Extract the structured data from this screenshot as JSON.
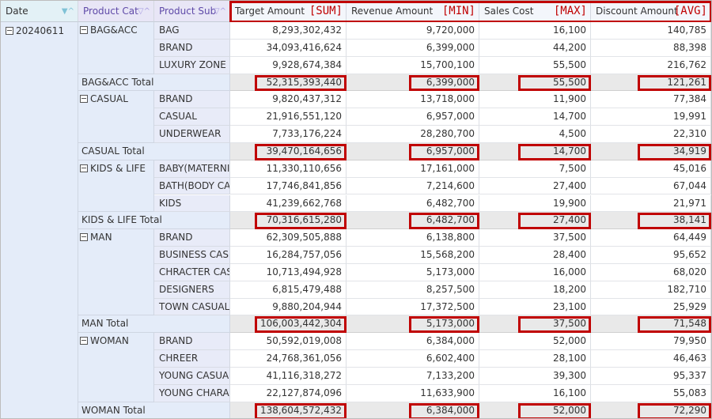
{
  "columns": {
    "date": "Date",
    "product_cat": "Product Cat",
    "product_sub": "Product Sub",
    "target_amount": "Target Amount",
    "revenue_amount": "Revenue Amount",
    "sales_cost": "Sales Cost",
    "discount_amount": "Discount Amount"
  },
  "aggregations": {
    "target_amount": "[SUM]",
    "revenue_amount": "[MIN]",
    "sales_cost": "[MAX]",
    "discount_amount": "[AVG]"
  },
  "date_value": "20240611",
  "icons": {
    "filter": "filter-icon",
    "sort": "sort-icon",
    "collapse": "collapse-icon"
  },
  "groups": [
    {
      "category": "BAG&ACC",
      "rows": [
        {
          "sub": "BAG",
          "target": "8,293,302,432",
          "revenue": "9,720,000",
          "cost": "16,100",
          "discount": "140,785"
        },
        {
          "sub": "BRAND",
          "target": "34,093,416,624",
          "revenue": "6,399,000",
          "cost": "44,200",
          "discount": "88,398"
        },
        {
          "sub": "LUXURY ZONE",
          "target": "9,928,674,384",
          "revenue": "15,700,100",
          "cost": "55,500",
          "discount": "216,762"
        }
      ],
      "total": {
        "label": "BAG&ACC Total",
        "target": "52,315,393,440",
        "revenue": "6,399,000",
        "cost": "55,500",
        "discount": "121,261"
      }
    },
    {
      "category": "CASUAL",
      "rows": [
        {
          "sub": "BRAND",
          "target": "9,820,437,312",
          "revenue": "13,718,000",
          "cost": "11,900",
          "discount": "77,384"
        },
        {
          "sub": "CASUAL",
          "target": "21,916,551,120",
          "revenue": "6,957,000",
          "cost": "14,700",
          "discount": "19,991"
        },
        {
          "sub": "UNDERWEAR",
          "target": "7,733,176,224",
          "revenue": "28,280,700",
          "cost": "4,500",
          "discount": "22,310"
        }
      ],
      "total": {
        "label": "CASUAL Total",
        "target": "39,470,164,656",
        "revenue": "6,957,000",
        "cost": "14,700",
        "discount": "34,919"
      }
    },
    {
      "category": "KIDS & LIFE",
      "rows": [
        {
          "sub": "BABY(MATERNITY",
          "target": "11,330,110,656",
          "revenue": "17,161,000",
          "cost": "7,500",
          "discount": "45,016"
        },
        {
          "sub": "BATH(BODY CAR",
          "target": "17,746,841,856",
          "revenue": "7,214,600",
          "cost": "27,400",
          "discount": "67,044"
        },
        {
          "sub": "KIDS",
          "target": "41,239,662,768",
          "revenue": "6,482,700",
          "cost": "19,900",
          "discount": "21,971"
        }
      ],
      "total": {
        "label": "KIDS & LIFE Total",
        "target": "70,316,615,280",
        "revenue": "6,482,700",
        "cost": "27,400",
        "discount": "38,141"
      }
    },
    {
      "category": "MAN",
      "rows": [
        {
          "sub": "BRAND",
          "target": "62,309,505,888",
          "revenue": "6,138,800",
          "cost": "37,500",
          "discount": "64,449"
        },
        {
          "sub": "BUSINESS CASU",
          "target": "16,284,757,056",
          "revenue": "15,568,200",
          "cost": "28,400",
          "discount": "95,652"
        },
        {
          "sub": "CHRACTER CASU",
          "target": "10,713,494,928",
          "revenue": "5,173,000",
          "cost": "16,000",
          "discount": "68,020"
        },
        {
          "sub": "DESIGNERS",
          "target": "6,815,479,488",
          "revenue": "8,257,500",
          "cost": "18,200",
          "discount": "182,710"
        },
        {
          "sub": "TOWN CASUAL",
          "target": "9,880,204,944",
          "revenue": "17,372,500",
          "cost": "23,100",
          "discount": "25,929"
        }
      ],
      "total": {
        "label": "MAN Total",
        "target": "106,003,442,304",
        "revenue": "5,173,000",
        "cost": "37,500",
        "discount": "71,548"
      }
    },
    {
      "category": "WOMAN",
      "rows": [
        {
          "sub": "BRAND",
          "target": "50,592,019,008",
          "revenue": "6,384,000",
          "cost": "52,000",
          "discount": "79,950"
        },
        {
          "sub": "CHREER",
          "target": "24,768,361,056",
          "revenue": "6,602,400",
          "cost": "28,100",
          "discount": "46,463"
        },
        {
          "sub": "YOUNG CASUAL",
          "target": "41,116,318,272",
          "revenue": "7,133,200",
          "cost": "39,300",
          "discount": "95,337"
        },
        {
          "sub": "YOUNG CHARAC",
          "target": "22,127,874,096",
          "revenue": "11,633,900",
          "cost": "16,100",
          "discount": "55,083"
        }
      ],
      "total": {
        "label": "WOMAN Total",
        "target": "138,604,572,432",
        "revenue": "6,384,000",
        "cost": "52,000",
        "discount": "72,290"
      }
    }
  ]
}
